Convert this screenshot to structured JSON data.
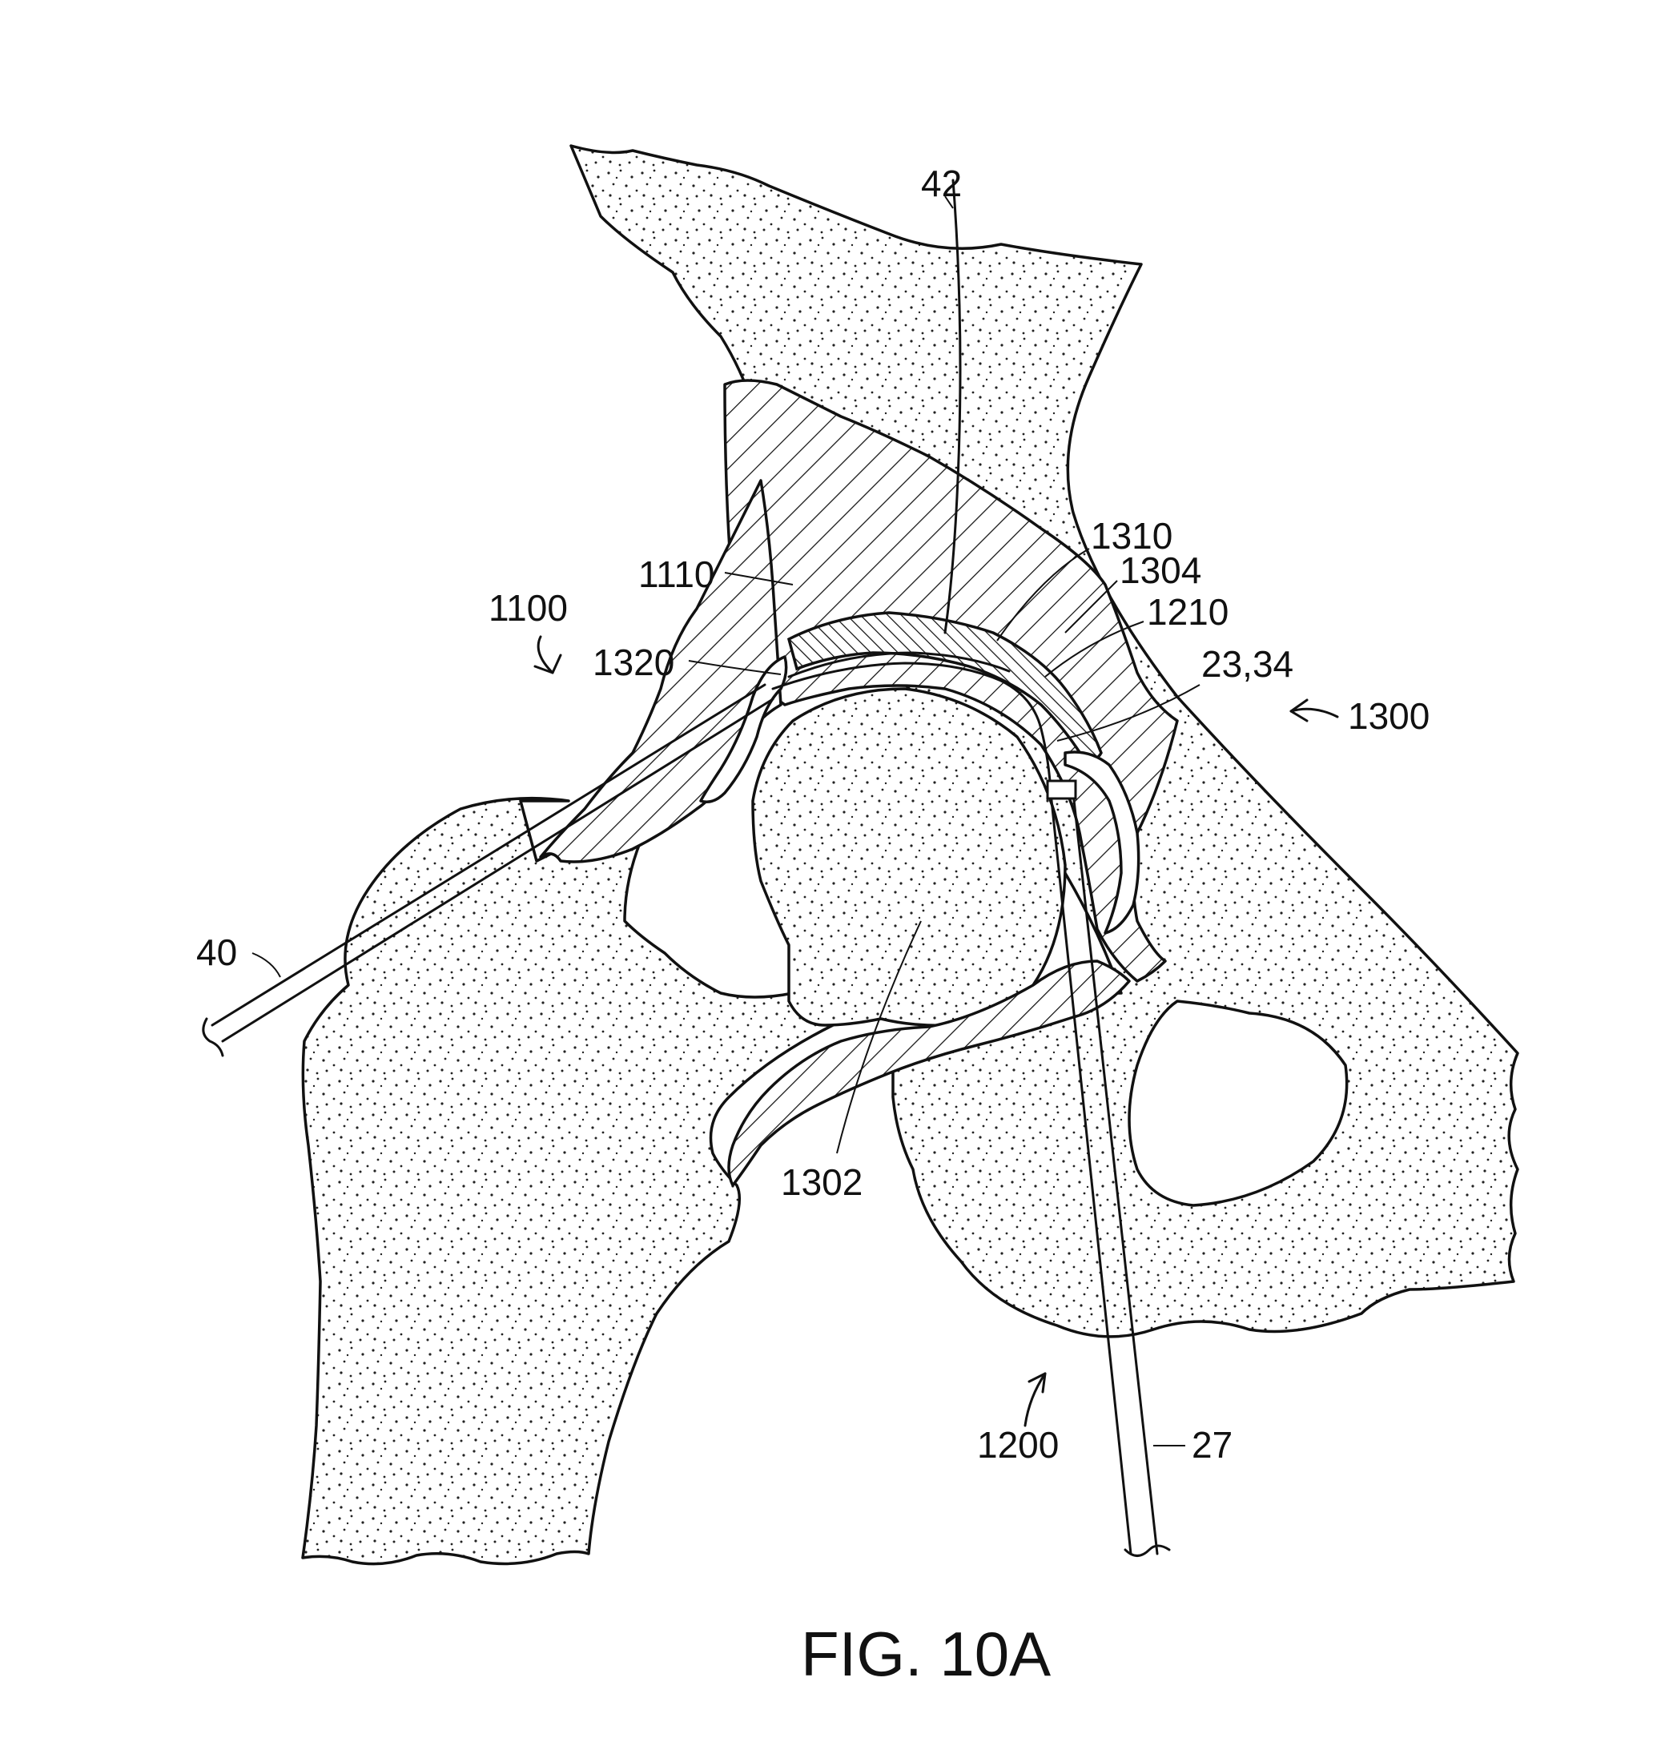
{
  "figure": {
    "caption": "FIG. 10A",
    "labels": {
      "l42": "42",
      "l1310": "1310",
      "l1304": "1304",
      "l1110": "1110",
      "l1210": "1210",
      "l1100": "1100",
      "l2334": "23,34",
      "l1320": "1320",
      "l1300": "1300",
      "l40": "40",
      "l1302": "1302",
      "l1200": "1200",
      "l27": "27"
    }
  }
}
